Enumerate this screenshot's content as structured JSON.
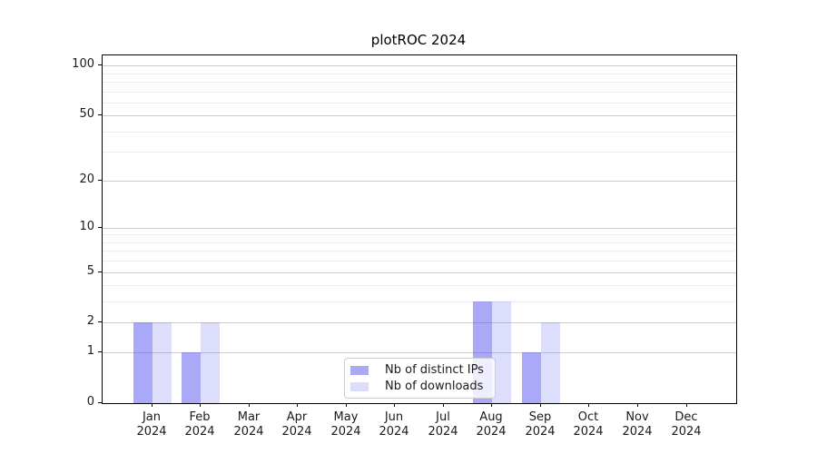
{
  "figure": {
    "background": "#ffffff",
    "text_color": "#1a1a1a",
    "frame_color": "#000000"
  },
  "chart_data": {
    "type": "bar",
    "title": "plotROC 2024",
    "scale": "log1p",
    "x_tick_months": [
      "Jan",
      "Feb",
      "Mar",
      "Apr",
      "May",
      "Jun",
      "Jul",
      "Aug",
      "Sep",
      "Oct",
      "Nov",
      "Dec"
    ],
    "x_tick_year": "2024",
    "categories": [
      "Jan 2024",
      "Feb 2024",
      "Mar 2024",
      "Apr 2024",
      "May 2024",
      "Jun 2024",
      "Jul 2024",
      "Aug 2024",
      "Sep 2024",
      "Oct 2024",
      "Nov 2024",
      "Dec 2024"
    ],
    "series": [
      {
        "name": "Nb of distinct IPs",
        "values": [
          2,
          1,
          0,
          0,
          0,
          0,
          0,
          3,
          1,
          0,
          0,
          0
        ],
        "color": "rgba(99, 99, 240, 0.55)",
        "legend_color": "#aaaaf4"
      },
      {
        "name": "Nb of downloads",
        "values": [
          2,
          2,
          0,
          0,
          0,
          0,
          0,
          3,
          2,
          0,
          0,
          0
        ],
        "color": "rgba(99, 99, 240, 0.22)",
        "legend_color": "#dcdcfb"
      }
    ],
    "y_axis": {
      "major_ticks": [
        0,
        1,
        2,
        5,
        10,
        20,
        50,
        100
      ],
      "minor_gridlines": [
        3,
        4,
        6,
        7,
        8,
        9,
        30,
        40,
        60,
        70,
        80,
        90
      ],
      "top_value": 115
    },
    "grid": {
      "major_color": "#cccccc",
      "minor_color": "#ececec"
    },
    "legend_position": "lower center"
  }
}
